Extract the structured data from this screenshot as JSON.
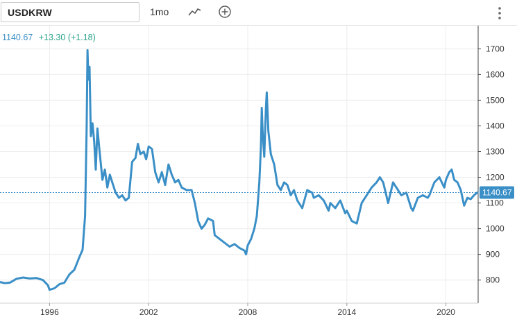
{
  "toolbar": {
    "symbol": "USDKRW",
    "interval": "1mo"
  },
  "quote": {
    "last": "1140.67",
    "change": "+13.30",
    "change_pct": "(+1.18)"
  },
  "price_tag": "1140.67",
  "colors": {
    "line": "#3a8fc7",
    "change": "#2aa38a",
    "grid": "#ececec",
    "axis": "#333333"
  },
  "chart_data": {
    "type": "line",
    "title": "",
    "xlabel": "",
    "ylabel": "",
    "ylim": [
      710,
      1790
    ],
    "xlim": [
      1993.0,
      2021.95
    ],
    "x_ticks": [
      1996,
      2002,
      2008,
      2014,
      2020
    ],
    "y_ticks": [
      800,
      900,
      1000,
      1100,
      1200,
      1300,
      1400,
      1500,
      1600,
      1700
    ],
    "grid": true,
    "last_value_line": 1140.67,
    "series": [
      {
        "name": "",
        "points": [
          [
            1993.0,
            792
          ],
          [
            1993.3,
            788
          ],
          [
            1993.6,
            790
          ],
          [
            1994.0,
            805
          ],
          [
            1994.4,
            810
          ],
          [
            1994.8,
            806
          ],
          [
            1995.2,
            808
          ],
          [
            1995.6,
            800
          ],
          [
            1995.9,
            780
          ],
          [
            1996.0,
            762
          ],
          [
            1996.3,
            768
          ],
          [
            1996.6,
            784
          ],
          [
            1996.9,
            790
          ],
          [
            1997.2,
            822
          ],
          [
            1997.5,
            840
          ],
          [
            1997.8,
            888
          ],
          [
            1998.0,
            918
          ],
          [
            1998.15,
            1050
          ],
          [
            1998.25,
            1400
          ],
          [
            1998.3,
            1695
          ],
          [
            1998.35,
            1580
          ],
          [
            1998.42,
            1630
          ],
          [
            1998.5,
            1360
          ],
          [
            1998.6,
            1410
          ],
          [
            1998.7,
            1340
          ],
          [
            1998.8,
            1230
          ],
          [
            1998.9,
            1390
          ],
          [
            1999.0,
            1320
          ],
          [
            1999.2,
            1190
          ],
          [
            1999.35,
            1230
          ],
          [
            1999.5,
            1160
          ],
          [
            1999.65,
            1210
          ],
          [
            1999.8,
            1180
          ],
          [
            2000.0,
            1140
          ],
          [
            2000.2,
            1120
          ],
          [
            2000.4,
            1130
          ],
          [
            2000.6,
            1110
          ],
          [
            2000.8,
            1120
          ],
          [
            2001.0,
            1260
          ],
          [
            2001.2,
            1275
          ],
          [
            2001.35,
            1330
          ],
          [
            2001.5,
            1290
          ],
          [
            2001.7,
            1300
          ],
          [
            2001.85,
            1270
          ],
          [
            2002.0,
            1320
          ],
          [
            2002.2,
            1310
          ],
          [
            2002.4,
            1220
          ],
          [
            2002.6,
            1180
          ],
          [
            2002.8,
            1220
          ],
          [
            2003.0,
            1170
          ],
          [
            2003.2,
            1250
          ],
          [
            2003.4,
            1210
          ],
          [
            2003.6,
            1180
          ],
          [
            2003.8,
            1190
          ],
          [
            2004.0,
            1160
          ],
          [
            2004.3,
            1150
          ],
          [
            2004.6,
            1150
          ],
          [
            2004.8,
            1100
          ],
          [
            2005.0,
            1030
          ],
          [
            2005.2,
            1000
          ],
          [
            2005.4,
            1015
          ],
          [
            2005.6,
            1040
          ],
          [
            2005.9,
            1030
          ],
          [
            2006.0,
            975
          ],
          [
            2006.3,
            960
          ],
          [
            2006.6,
            945
          ],
          [
            2006.9,
            930
          ],
          [
            2007.2,
            940
          ],
          [
            2007.5,
            925
          ],
          [
            2007.8,
            915
          ],
          [
            2007.9,
            900
          ],
          [
            2008.0,
            935
          ],
          [
            2008.2,
            960
          ],
          [
            2008.4,
            1000
          ],
          [
            2008.55,
            1050
          ],
          [
            2008.7,
            1180
          ],
          [
            2008.8,
            1320
          ],
          [
            2008.85,
            1470
          ],
          [
            2008.9,
            1380
          ],
          [
            2009.0,
            1280
          ],
          [
            2009.1,
            1470
          ],
          [
            2009.15,
            1530
          ],
          [
            2009.25,
            1380
          ],
          [
            2009.4,
            1290
          ],
          [
            2009.6,
            1250
          ],
          [
            2009.8,
            1170
          ],
          [
            2010.0,
            1150
          ],
          [
            2010.2,
            1180
          ],
          [
            2010.4,
            1170
          ],
          [
            2010.6,
            1130
          ],
          [
            2010.8,
            1150
          ],
          [
            2011.0,
            1110
          ],
          [
            2011.3,
            1080
          ],
          [
            2011.6,
            1150
          ],
          [
            2011.9,
            1140
          ],
          [
            2012.0,
            1120
          ],
          [
            2012.3,
            1130
          ],
          [
            2012.6,
            1110
          ],
          [
            2012.9,
            1070
          ],
          [
            2013.0,
            1100
          ],
          [
            2013.3,
            1080
          ],
          [
            2013.6,
            1110
          ],
          [
            2013.9,
            1060
          ],
          [
            2014.0,
            1070
          ],
          [
            2014.3,
            1030
          ],
          [
            2014.6,
            1020
          ],
          [
            2014.9,
            1100
          ],
          [
            2015.2,
            1130
          ],
          [
            2015.5,
            1160
          ],
          [
            2015.8,
            1180
          ],
          [
            2016.0,
            1200
          ],
          [
            2016.2,
            1180
          ],
          [
            2016.5,
            1100
          ],
          [
            2016.8,
            1180
          ],
          [
            2017.0,
            1160
          ],
          [
            2017.3,
            1130
          ],
          [
            2017.6,
            1140
          ],
          [
            2017.9,
            1080
          ],
          [
            2018.0,
            1070
          ],
          [
            2018.3,
            1120
          ],
          [
            2018.6,
            1130
          ],
          [
            2018.9,
            1120
          ],
          [
            2019.0,
            1130
          ],
          [
            2019.3,
            1180
          ],
          [
            2019.6,
            1200
          ],
          [
            2019.9,
            1160
          ],
          [
            2020.0,
            1190
          ],
          [
            2020.2,
            1220
          ],
          [
            2020.35,
            1230
          ],
          [
            2020.5,
            1190
          ],
          [
            2020.7,
            1180
          ],
          [
            2020.9,
            1150
          ],
          [
            2021.1,
            1090
          ],
          [
            2021.3,
            1120
          ],
          [
            2021.5,
            1115
          ],
          [
            2021.7,
            1130
          ],
          [
            2021.9,
            1140.67
          ]
        ]
      }
    ]
  }
}
